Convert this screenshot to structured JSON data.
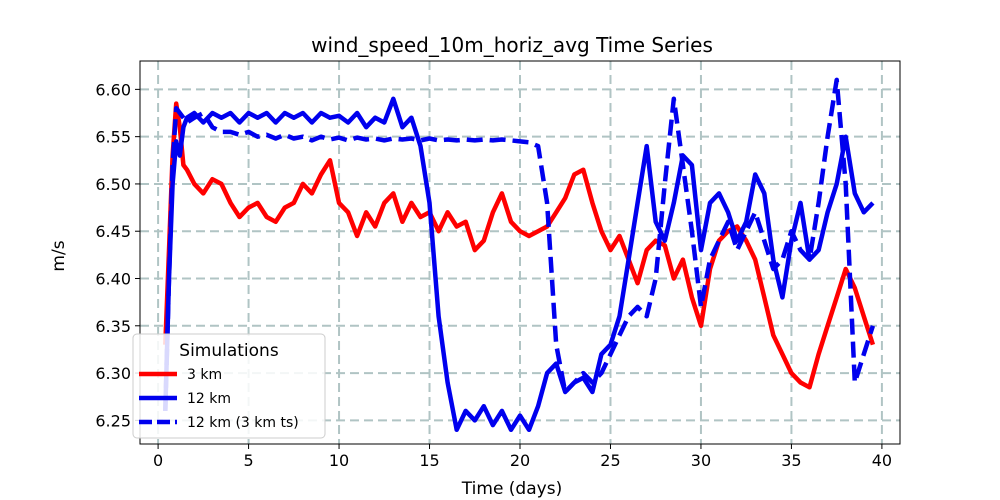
{
  "chart_data": {
    "type": "line",
    "title": "wind_speed_10m_horiz_avg Time Series",
    "xlabel": "Time (days)",
    "ylabel": "m/s",
    "xlim": [
      -1,
      41
    ],
    "ylim": [
      6.225,
      6.63
    ],
    "xticks": [
      0,
      5,
      10,
      15,
      20,
      25,
      30,
      35,
      40
    ],
    "yticks": [
      6.25,
      6.3,
      6.35,
      6.4,
      6.45,
      6.5,
      6.55,
      6.6
    ],
    "grid": true,
    "legend": {
      "title": "Simulations",
      "placement": "lower-left"
    },
    "series": [
      {
        "name": "3 km",
        "color": "#ff0000",
        "linestyle": "solid",
        "x": [
          0.4,
          0.6,
          0.8,
          1.0,
          1.2,
          1.4,
          1.6,
          2.0,
          2.5,
          3.0,
          3.5,
          4.0,
          4.5,
          5.0,
          5.5,
          6.0,
          6.5,
          7.0,
          7.5,
          8.0,
          8.5,
          9.0,
          9.5,
          10.0,
          10.5,
          11.0,
          11.5,
          12.0,
          12.5,
          13.0,
          13.5,
          14.0,
          14.5,
          15.0,
          15.5,
          16.0,
          16.5,
          17.0,
          17.5,
          18.0,
          18.5,
          19.0,
          19.5,
          20.0,
          20.5,
          21.0,
          21.5,
          22.0,
          22.5,
          23.0,
          23.5,
          24.0,
          24.5,
          25.0,
          25.5,
          26.0,
          26.5,
          27.0,
          27.5,
          28.0,
          28.5,
          29.0,
          29.5,
          30.0,
          30.5,
          31.0,
          31.5,
          32.0,
          32.5,
          33.0,
          33.5,
          34.0,
          34.5,
          35.0,
          35.5,
          36.0,
          36.5,
          37.0,
          37.5,
          38.0,
          38.5,
          39.0,
          39.5
        ],
        "y": [
          6.33,
          6.43,
          6.53,
          6.585,
          6.56,
          6.52,
          6.515,
          6.5,
          6.49,
          6.505,
          6.5,
          6.48,
          6.465,
          6.475,
          6.48,
          6.465,
          6.46,
          6.475,
          6.48,
          6.5,
          6.49,
          6.51,
          6.525,
          6.48,
          6.47,
          6.445,
          6.47,
          6.455,
          6.48,
          6.49,
          6.46,
          6.48,
          6.465,
          6.47,
          6.45,
          6.47,
          6.455,
          6.46,
          6.43,
          6.44,
          6.47,
          6.49,
          6.46,
          6.45,
          6.445,
          6.45,
          6.455,
          6.47,
          6.485,
          6.51,
          6.515,
          6.48,
          6.45,
          6.43,
          6.445,
          6.42,
          6.395,
          6.43,
          6.44,
          6.435,
          6.4,
          6.42,
          6.38,
          6.35,
          6.41,
          6.44,
          6.45,
          6.455,
          6.44,
          6.42,
          6.38,
          6.34,
          6.32,
          6.3,
          6.29,
          6.285,
          6.32,
          6.35,
          6.38,
          6.41,
          6.39,
          6.36,
          6.33
        ]
      },
      {
        "name": "12 km",
        "color": "#0000ee",
        "linestyle": "solid",
        "x": [
          0.4,
          0.6,
          0.8,
          1.0,
          1.2,
          1.4,
          1.6,
          2.0,
          2.5,
          3.0,
          3.5,
          4.0,
          4.5,
          5.0,
          5.5,
          6.0,
          6.5,
          7.0,
          7.5,
          8.0,
          8.5,
          9.0,
          9.5,
          10.0,
          10.5,
          11.0,
          11.5,
          12.0,
          12.5,
          13.0,
          13.5,
          14.0,
          14.5,
          15.0,
          15.5,
          16.0,
          16.5,
          17.0,
          17.5,
          18.0,
          18.5,
          19.0,
          19.5,
          20.0,
          20.5,
          21.0,
          21.5,
          22.0,
          22.5,
          23.0,
          23.5,
          24.0,
          24.5,
          25.0,
          25.5,
          26.0,
          26.5,
          27.0,
          27.5,
          28.0,
          28.5,
          29.0,
          29.5,
          30.0,
          30.5,
          31.0,
          31.5,
          32.0,
          32.5,
          33.0,
          33.5,
          34.0,
          34.5,
          35.0,
          35.5,
          36.0,
          36.5,
          37.0,
          37.5,
          38.0,
          38.5,
          39.0,
          39.5
        ],
        "y": [
          6.26,
          6.4,
          6.5,
          6.545,
          6.53,
          6.56,
          6.57,
          6.575,
          6.565,
          6.575,
          6.57,
          6.575,
          6.565,
          6.575,
          6.57,
          6.575,
          6.565,
          6.575,
          6.57,
          6.575,
          6.565,
          6.575,
          6.57,
          6.572,
          6.565,
          6.575,
          6.56,
          6.57,
          6.565,
          6.59,
          6.56,
          6.57,
          6.54,
          6.48,
          6.36,
          6.29,
          6.24,
          6.26,
          6.25,
          6.265,
          6.245,
          6.26,
          6.24,
          6.255,
          6.24,
          6.265,
          6.3,
          6.31,
          6.28,
          6.29,
          6.295,
          6.28,
          6.32,
          6.33,
          6.36,
          6.42,
          6.48,
          6.54,
          6.46,
          6.44,
          6.48,
          6.53,
          6.52,
          6.43,
          6.48,
          6.49,
          6.47,
          6.44,
          6.46,
          6.51,
          6.49,
          6.42,
          6.38,
          6.44,
          6.48,
          6.42,
          6.43,
          6.47,
          6.5,
          6.55,
          6.49,
          6.47,
          6.48
        ]
      },
      {
        "name": "12 km (3 km ts)",
        "color": "#0000ee",
        "linestyle": "dashed",
        "x": [
          0.4,
          0.6,
          0.8,
          1.0,
          1.2,
          1.4,
          1.6,
          2.0,
          2.5,
          3.0,
          3.5,
          4.0,
          4.5,
          5.0,
          5.5,
          6.0,
          6.5,
          7.0,
          7.5,
          8.0,
          8.5,
          9.0,
          9.5,
          10.0,
          10.5,
          11.0,
          11.5,
          12.0,
          12.5,
          13.0,
          13.5,
          14.0,
          14.5,
          15.0,
          15.5,
          16.0,
          16.5,
          17.0,
          17.5,
          18.0,
          18.5,
          19.0,
          19.5,
          20.0,
          20.5,
          21.0,
          21.5,
          22.0,
          22.5,
          23.0,
          23.5,
          24.0,
          24.5,
          25.0,
          25.5,
          26.0,
          26.5,
          27.0,
          27.5,
          28.0,
          28.5,
          29.0,
          29.5,
          30.0,
          30.5,
          31.0,
          31.5,
          32.0,
          32.5,
          33.0,
          33.5,
          34.0,
          34.5,
          35.0,
          35.5,
          36.0,
          36.5,
          37.0,
          37.5,
          38.0,
          38.5,
          39.0,
          39.5
        ],
        "y": [
          6.26,
          6.4,
          6.52,
          6.58,
          6.575,
          6.57,
          6.565,
          6.57,
          6.575,
          6.56,
          6.555,
          6.555,
          6.552,
          6.555,
          6.55,
          6.552,
          6.548,
          6.552,
          6.548,
          6.55,
          6.546,
          6.55,
          6.547,
          6.549,
          6.546,
          6.549,
          6.547,
          6.548,
          6.546,
          6.548,
          6.547,
          6.548,
          6.546,
          6.548,
          6.546,
          6.547,
          6.546,
          6.547,
          6.546,
          6.547,
          6.546,
          6.547,
          6.546,
          6.545,
          6.544,
          6.54,
          6.48,
          6.33,
          6.28,
          6.29,
          6.3,
          6.29,
          6.3,
          6.32,
          6.34,
          6.36,
          6.37,
          6.36,
          6.4,
          6.5,
          6.59,
          6.52,
          6.45,
          6.37,
          6.42,
          6.44,
          6.46,
          6.43,
          6.45,
          6.47,
          6.44,
          6.41,
          6.42,
          6.45,
          6.43,
          6.42,
          6.48,
          6.55,
          6.61,
          6.5,
          6.29,
          6.32,
          6.35
        ]
      }
    ]
  }
}
